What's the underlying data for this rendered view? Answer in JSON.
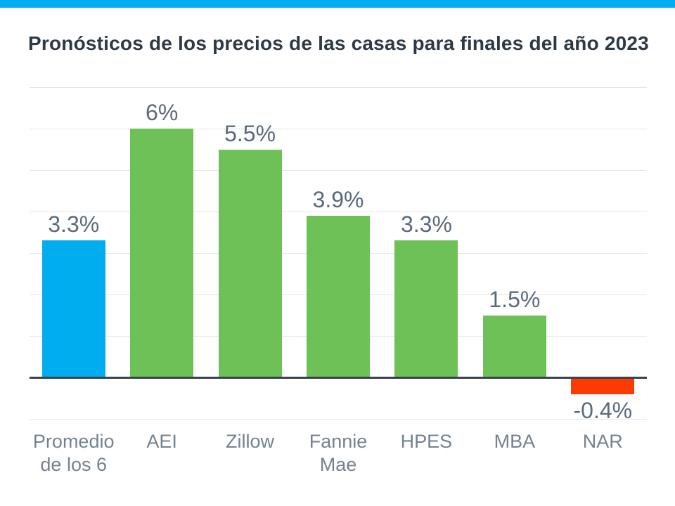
{
  "page": {
    "top_bar_color": "#00AEEF",
    "background": "#FFFFFF"
  },
  "header": {
    "title": "Pronósticos de los precios de las casas para finales del año 2023",
    "title_color": "#2E3945"
  },
  "chart_data": {
    "type": "bar",
    "title": "Pronósticos de los precios de las casas para finales del año 2023",
    "categories": [
      "Promedio\nde los 6",
      "AEI",
      "Zillow",
      "Fannie\nMae",
      "HPES",
      "MBA",
      "NAR"
    ],
    "values": [
      3.3,
      6,
      5.5,
      3.9,
      3.3,
      1.5,
      -0.4
    ],
    "value_labels": [
      "3.3%",
      "6%",
      "5.5%",
      "3.9%",
      "3.3%",
      "1.5%",
      "-0.4%"
    ],
    "bar_colors": [
      "#00AEEF",
      "#6EC157",
      "#6EC157",
      "#6EC157",
      "#6EC157",
      "#6EC157",
      "#FB3B02"
    ],
    "xlabel": "",
    "ylabel": "",
    "ylim": [
      -1,
      7
    ],
    "gridline_step": 1,
    "grid": true,
    "legend": "none",
    "axis_color": "#39434E",
    "gridline_color": "#E4E6E9",
    "value_label_color": "#5A6A7C",
    "category_label_color": "#76828F"
  }
}
